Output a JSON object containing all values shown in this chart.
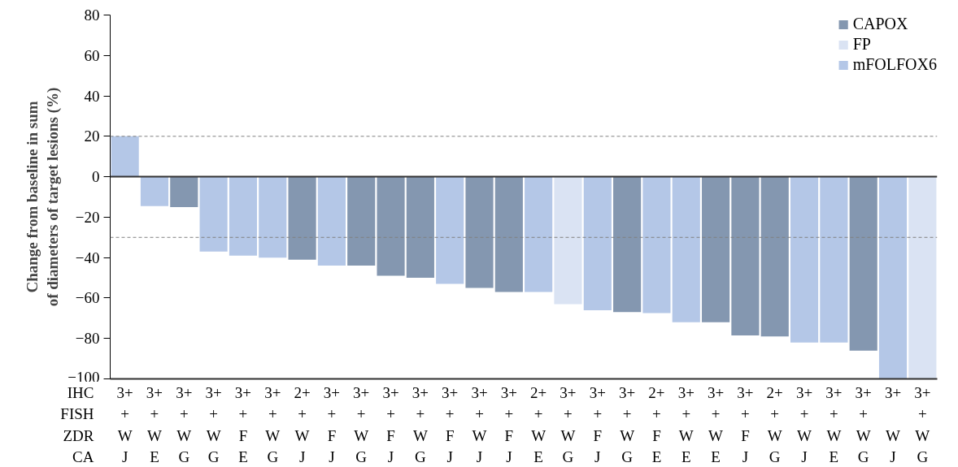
{
  "chart_data": {
    "type": "bar",
    "ylabel": "Change from baseline in sum\nof diameters of target lesions (%)",
    "categories": [
      "3+\n+\nW\nJ",
      "3+\n+\nW\nE",
      "3+\n+\nW\nG",
      "3+\n+\nW\nG",
      "3+\n+\nF\nE",
      "3+\n+\nW\nG",
      "2+\n+\nW\nJ",
      "3+\n+\nF\nJ",
      "3+\n+\nW\nG",
      "3+\n+\nF\nJ",
      "3+\n+\nW\nG",
      "3+\n+\nF\nJ",
      "3+\n+\nW\nJ",
      "3+\n+\nF\nJ",
      "2+\n+\nW\nE",
      "3+\n+\nW\nG",
      "3+\n+\nF\nJ",
      "3+\n+\nW\nG",
      "2+\n+\nF\nE",
      "3+\n+\nW\nE",
      "3+\n+\nW\nE",
      "3+\n+\nF\nJ",
      "2+\n+\nW\nG",
      "3+\n+\nW\nJ",
      "3+\n+\nW\nE",
      "3+\n+\nW\nG",
      "3+\n\nW\nJ",
      "3+\n+\nW\nG"
    ],
    "series": [
      {
        "name": "CAPOX",
        "color": "#8497b0",
        "values": [
          null,
          null,
          -15,
          null,
          null,
          null,
          -41,
          null,
          -44,
          -49,
          -50,
          null,
          -55,
          -57,
          null,
          null,
          null,
          -67,
          null,
          null,
          -72,
          -78.5,
          -79,
          null,
          null,
          -86,
          null,
          null
        ]
      },
      {
        "name": "FP",
        "color": "#dae3f3",
        "values": [
          null,
          null,
          null,
          null,
          null,
          null,
          null,
          null,
          null,
          null,
          null,
          null,
          null,
          null,
          null,
          -63,
          null,
          null,
          null,
          null,
          null,
          null,
          null,
          null,
          null,
          null,
          null,
          -100
        ]
      },
      {
        "name": "mFOLFOX6",
        "color": "#b4c7e7",
        "values": [
          20,
          -14.5,
          null,
          -37,
          -39,
          -40,
          null,
          -44,
          null,
          null,
          null,
          -53,
          null,
          null,
          -57,
          null,
          -66,
          null,
          -67.5,
          -72,
          null,
          null,
          null,
          -82,
          -82,
          null,
          -100,
          null
        ]
      }
    ],
    "ylim": [
      -100,
      80
    ],
    "yticks": [
      -100,
      -80,
      -60,
      -40,
      -20,
      0,
      20,
      40,
      60,
      80
    ],
    "ref_lines": [
      {
        "axis": "y",
        "value": 20,
        "color": "#808080",
        "line_style": "dashed"
      },
      {
        "axis": "y",
        "value": -30,
        "color": "#808080",
        "line_style": "dashed"
      }
    ],
    "annotations": [
      "IHC",
      "FISH",
      "ZDR",
      "CA"
    ],
    "legend": "top right",
    "grid": false
  }
}
